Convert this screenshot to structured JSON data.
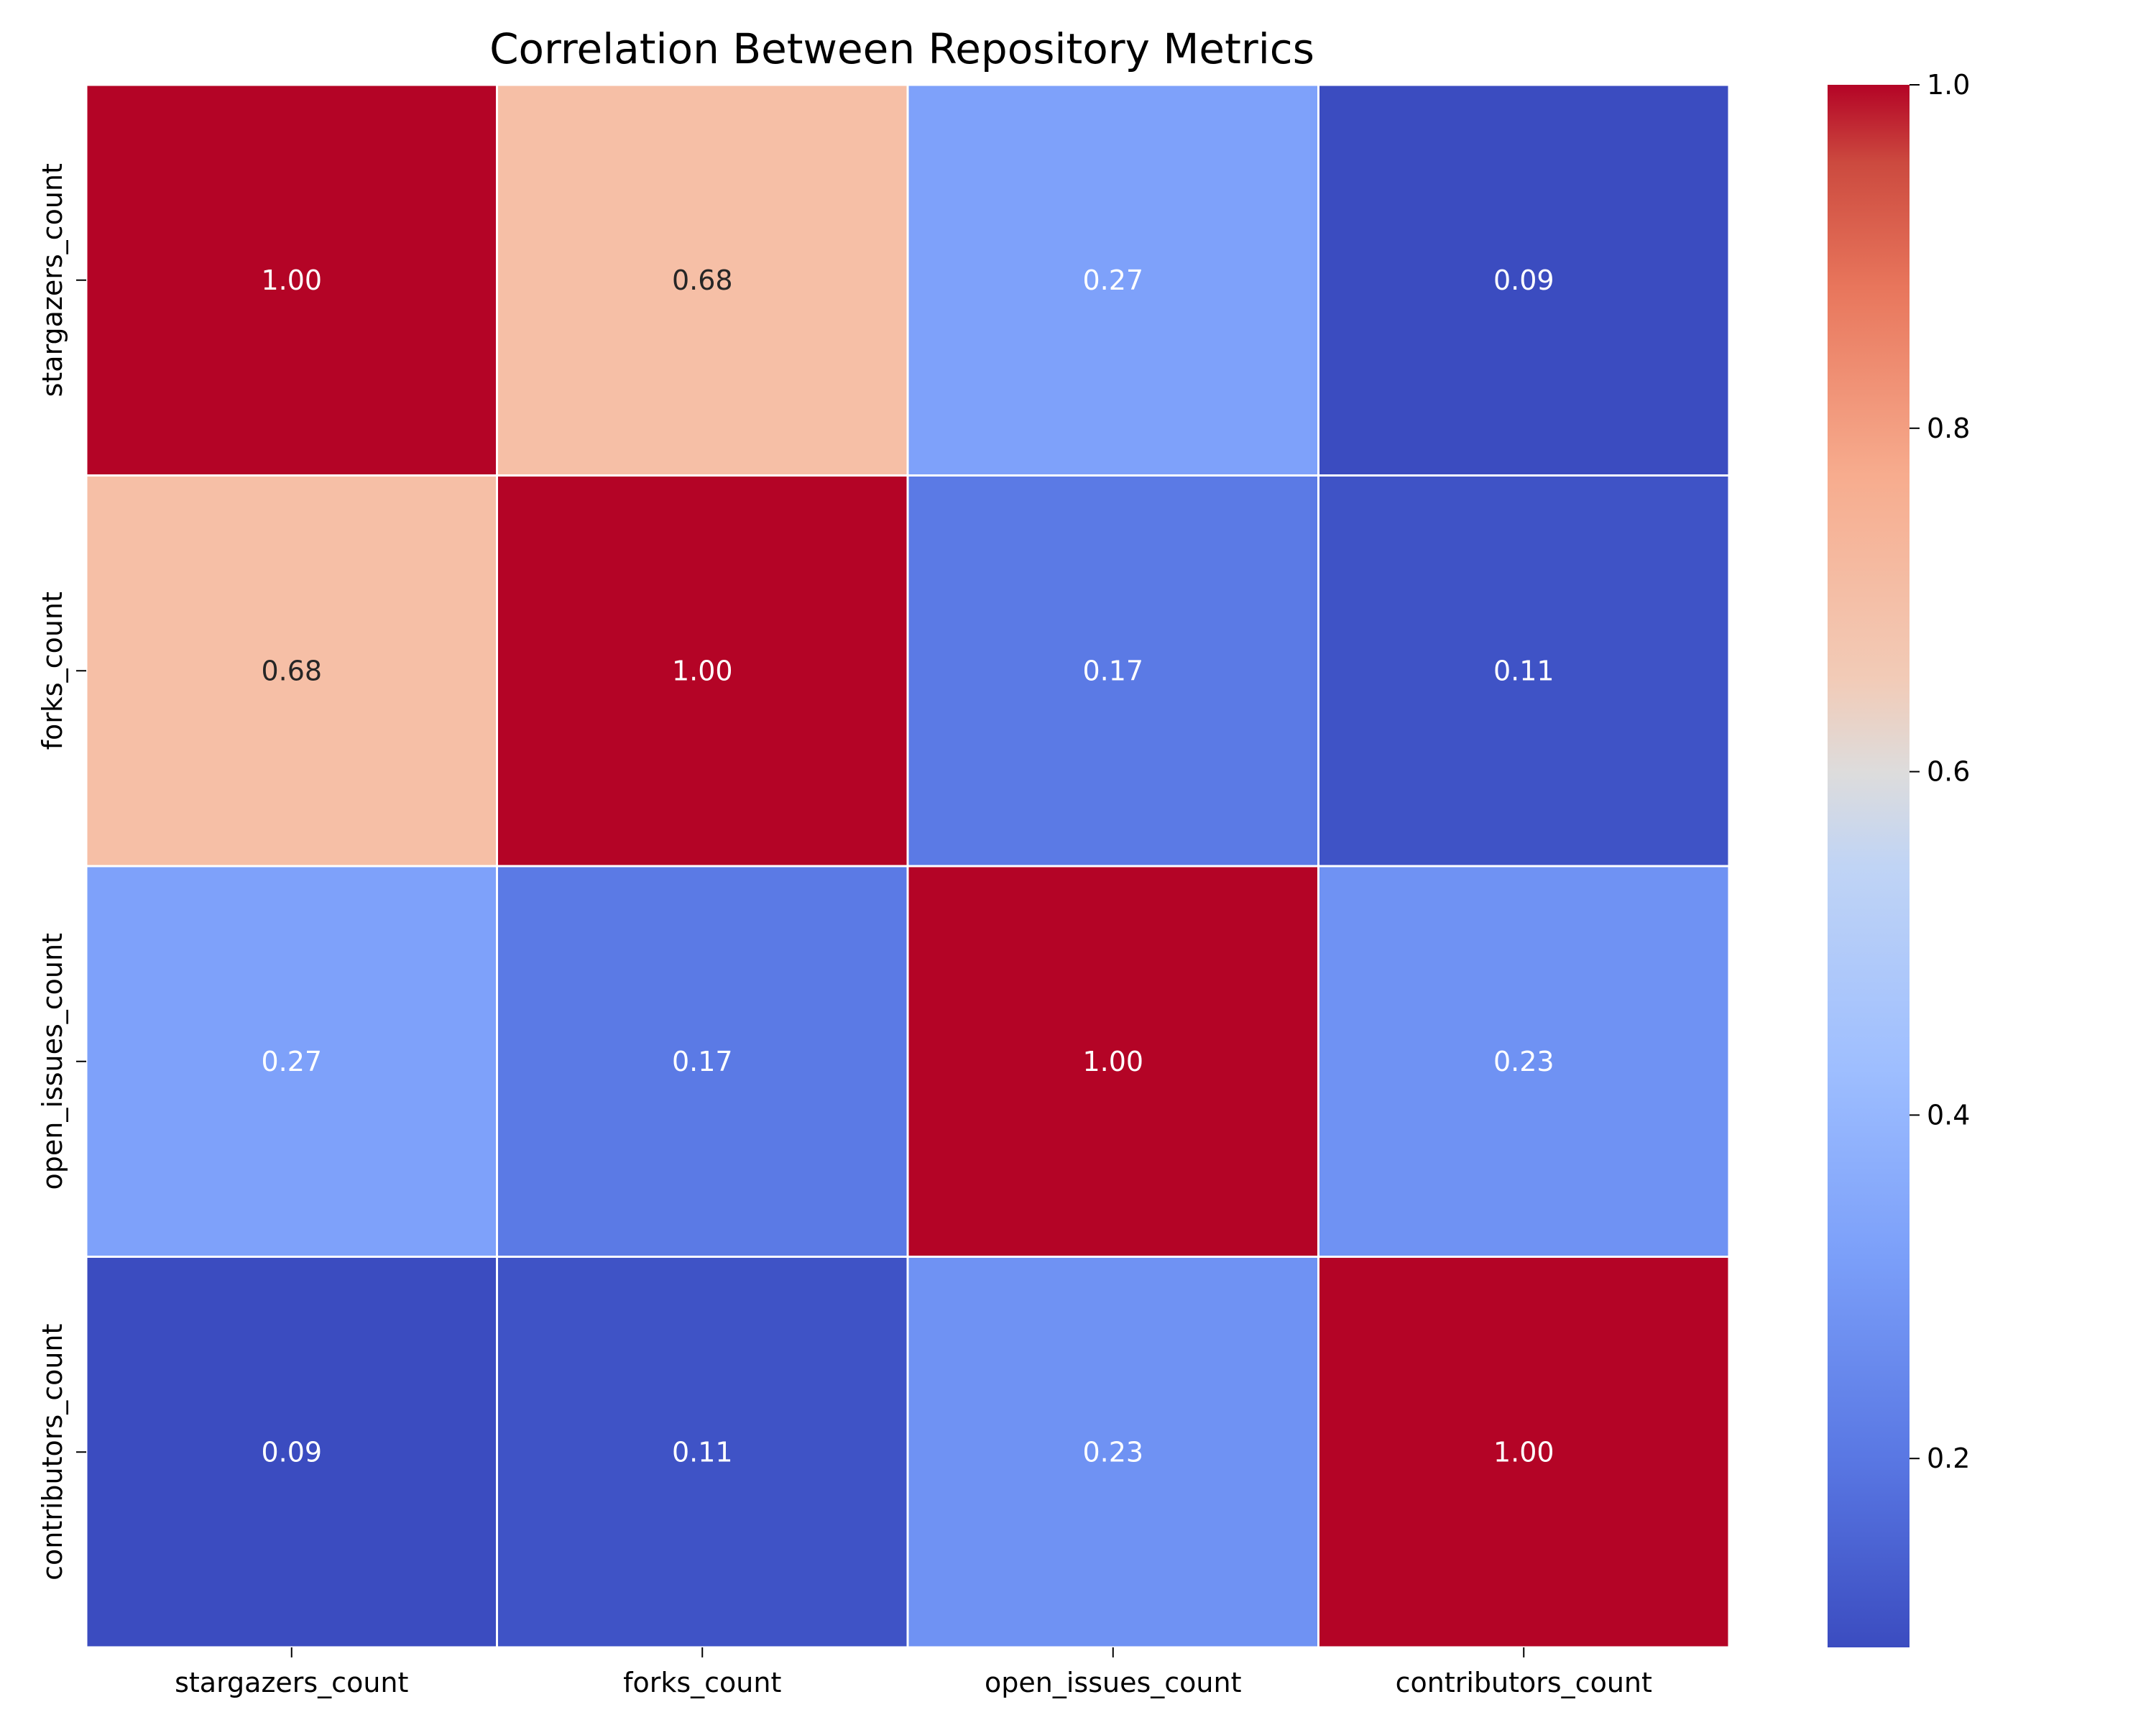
{
  "chart_data": {
    "type": "heatmap",
    "title": "Correlation Between Repository Metrics",
    "xlabel": "",
    "ylabel": "",
    "x_categories": [
      "stargazers_count",
      "forks_count",
      "open_issues_count",
      "contributors_count"
    ],
    "y_categories": [
      "stargazers_count",
      "forks_count",
      "open_issues_count",
      "contributors_count"
    ],
    "matrix": [
      [
        1.0,
        0.68,
        0.27,
        0.09
      ],
      [
        0.68,
        1.0,
        0.17,
        0.11
      ],
      [
        0.27,
        0.17,
        1.0,
        0.23
      ],
      [
        0.09,
        0.11,
        0.23,
        1.0
      ]
    ],
    "cell_labels": [
      [
        "1.00",
        "0.68",
        "0.27",
        "0.09"
      ],
      [
        "0.68",
        "1.00",
        "0.17",
        "0.11"
      ],
      [
        "0.27",
        "0.17",
        "1.00",
        "0.23"
      ],
      [
        "0.09",
        "0.11",
        "0.23",
        "1.00"
      ]
    ],
    "colormap": "coolwarm",
    "color_range": [
      0.09,
      1.0
    ],
    "colorbar": {
      "ticks": [
        0.2,
        0.4,
        0.6,
        0.8,
        1.0
      ],
      "tick_labels": [
        "0.2",
        "0.4",
        "0.6",
        "0.8",
        "1.0"
      ]
    },
    "colors": {
      "cells": [
        [
          "#b40426",
          "#f6bfa6",
          "#7ea1fa",
          "#3b4cc0"
        ],
        [
          "#f6bfa6",
          "#b40426",
          "#5b7ae5",
          "#3f53c6"
        ],
        [
          "#7ea1fa",
          "#5b7ae5",
          "#b40426",
          "#6f92f3"
        ],
        [
          "#3b4cc0",
          "#3f53c6",
          "#6f92f3",
          "#b40426"
        ]
      ],
      "dark_text": "#262626",
      "light_text": "#ffffff",
      "gridline": "#ffffff"
    }
  }
}
